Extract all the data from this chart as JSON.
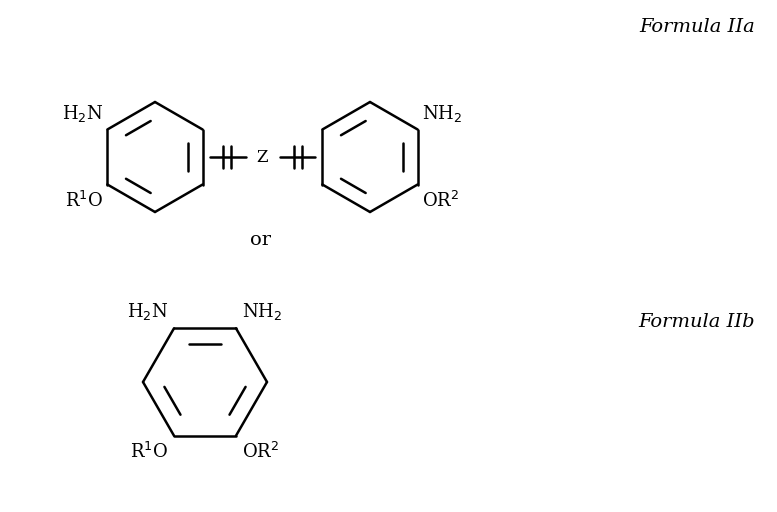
{
  "bg_color": "#ffffff",
  "line_color": "#000000",
  "line_width": 1.8,
  "font_size_label": 13,
  "font_size_formula": 14,
  "formula_IIa": "Formula IIa",
  "formula_IIb": "Formula IIb",
  "or_text": "or",
  "ring_size": 0.55,
  "inner_ratio": 0.7
}
